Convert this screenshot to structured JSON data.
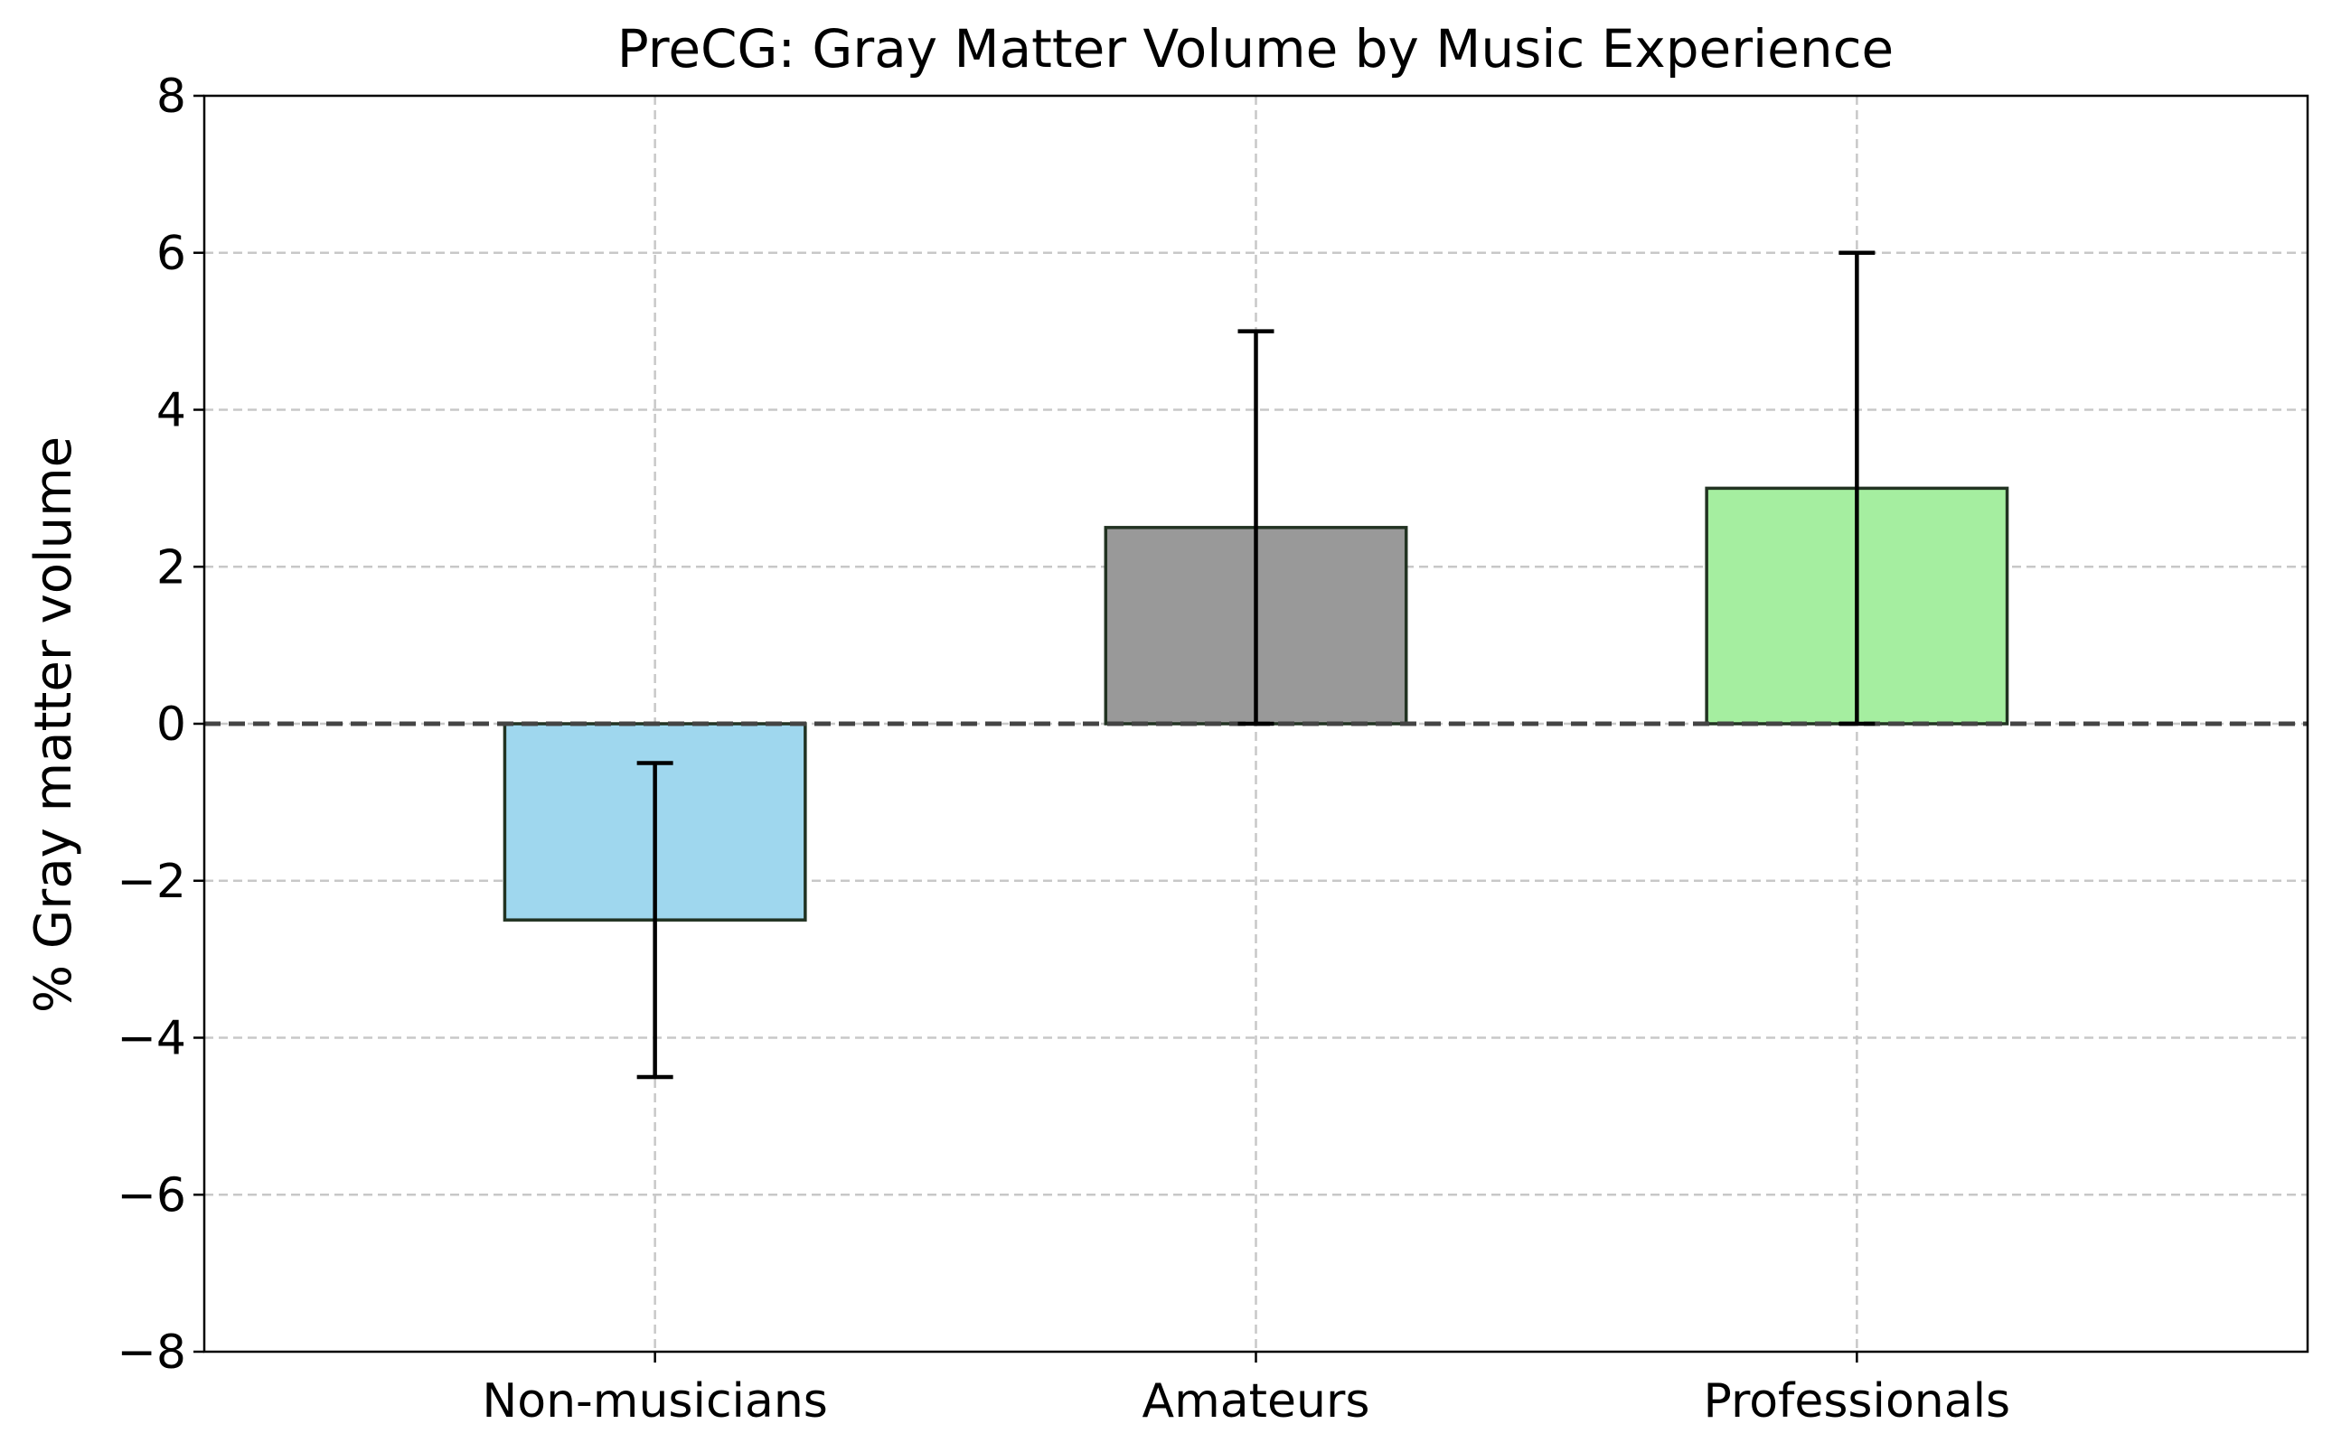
{
  "chart_data": {
    "type": "bar",
    "title": "PreCG: Gray Matter Volume by Music Experience",
    "xlabel": "",
    "ylabel": "% Gray matter volume",
    "categories": [
      "Non-musicians",
      "Amateurs",
      "Professionals"
    ],
    "values": [
      -2.5,
      2.5,
      3.0
    ],
    "error_bars": [
      {
        "low": -4.5,
        "high": -0.5
      },
      {
        "low": 0.0,
        "high": 5.0
      },
      {
        "low": 0.0,
        "high": 6.0
      }
    ],
    "colors": [
      "#9fd7ee",
      "#999999",
      "#a5eea0"
    ],
    "ylim": [
      -8,
      8
    ],
    "yticks": [
      -8,
      -6,
      -4,
      -2,
      0,
      2,
      4,
      6,
      8
    ],
    "ytick_labels": [
      "−8",
      "−6",
      "−4",
      "−2",
      "0",
      "2",
      "4",
      "6",
      "8"
    ],
    "grid": true,
    "zero_line": true
  }
}
